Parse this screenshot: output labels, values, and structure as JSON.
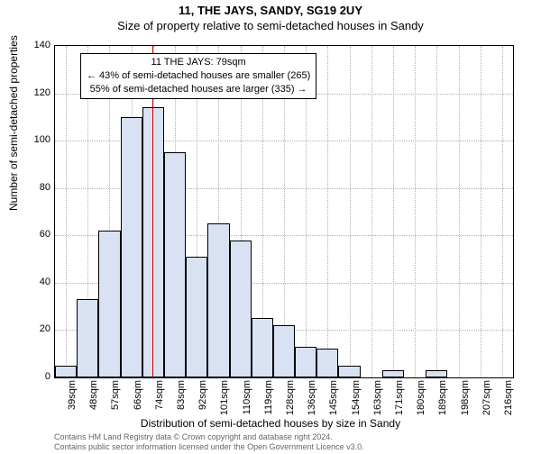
{
  "title_main": "11, THE JAYS, SANDY, SG19 2UY",
  "title_sub": "Size of property relative to semi-detached houses in Sandy",
  "ylabel": "Number of semi-detached properties",
  "xlabel": "Distribution of semi-detached houses by size in Sandy",
  "chart": {
    "type": "histogram",
    "ylim": [
      0,
      140
    ],
    "ytick_step": 20,
    "bar_fill": "#d9e2f3",
    "bar_border": "#000000",
    "grid_color": "#b0b0b0",
    "background": "#ffffff",
    "vline_color": "#cc0000",
    "vline_x": 79,
    "x_start": 39,
    "x_step": 9,
    "x_unit": "sqm",
    "n_bins": 21,
    "counts": [
      5,
      33,
      62,
      110,
      114,
      95,
      51,
      65,
      58,
      25,
      22,
      13,
      12,
      5,
      0,
      3,
      0,
      3,
      0,
      0,
      0
    ]
  },
  "yticks": [
    0,
    20,
    40,
    60,
    80,
    100,
    120,
    140
  ],
  "xticks": [
    "39sqm",
    "48sqm",
    "57sqm",
    "66sqm",
    "74sqm",
    "83sqm",
    "92sqm",
    "101sqm",
    "110sqm",
    "119sqm",
    "128sqm",
    "136sqm",
    "145sqm",
    "154sqm",
    "163sqm",
    "171sqm",
    "180sqm",
    "189sqm",
    "198sqm",
    "207sqm",
    "216sqm"
  ],
  "annotation": {
    "line1": "11 THE JAYS: 79sqm",
    "line2": "← 43% of semi-detached houses are smaller (265)",
    "line3": "55% of semi-detached houses are larger (335) →"
  },
  "footer": {
    "line1": "Contains HM Land Registry data © Crown copyright and database right 2024.",
    "line2": "Contains public sector information licensed under the Open Government Licence v3.0."
  },
  "fontsize": {
    "title": 13,
    "label": 12,
    "tick": 11,
    "annotation": 11,
    "footer": 9
  }
}
